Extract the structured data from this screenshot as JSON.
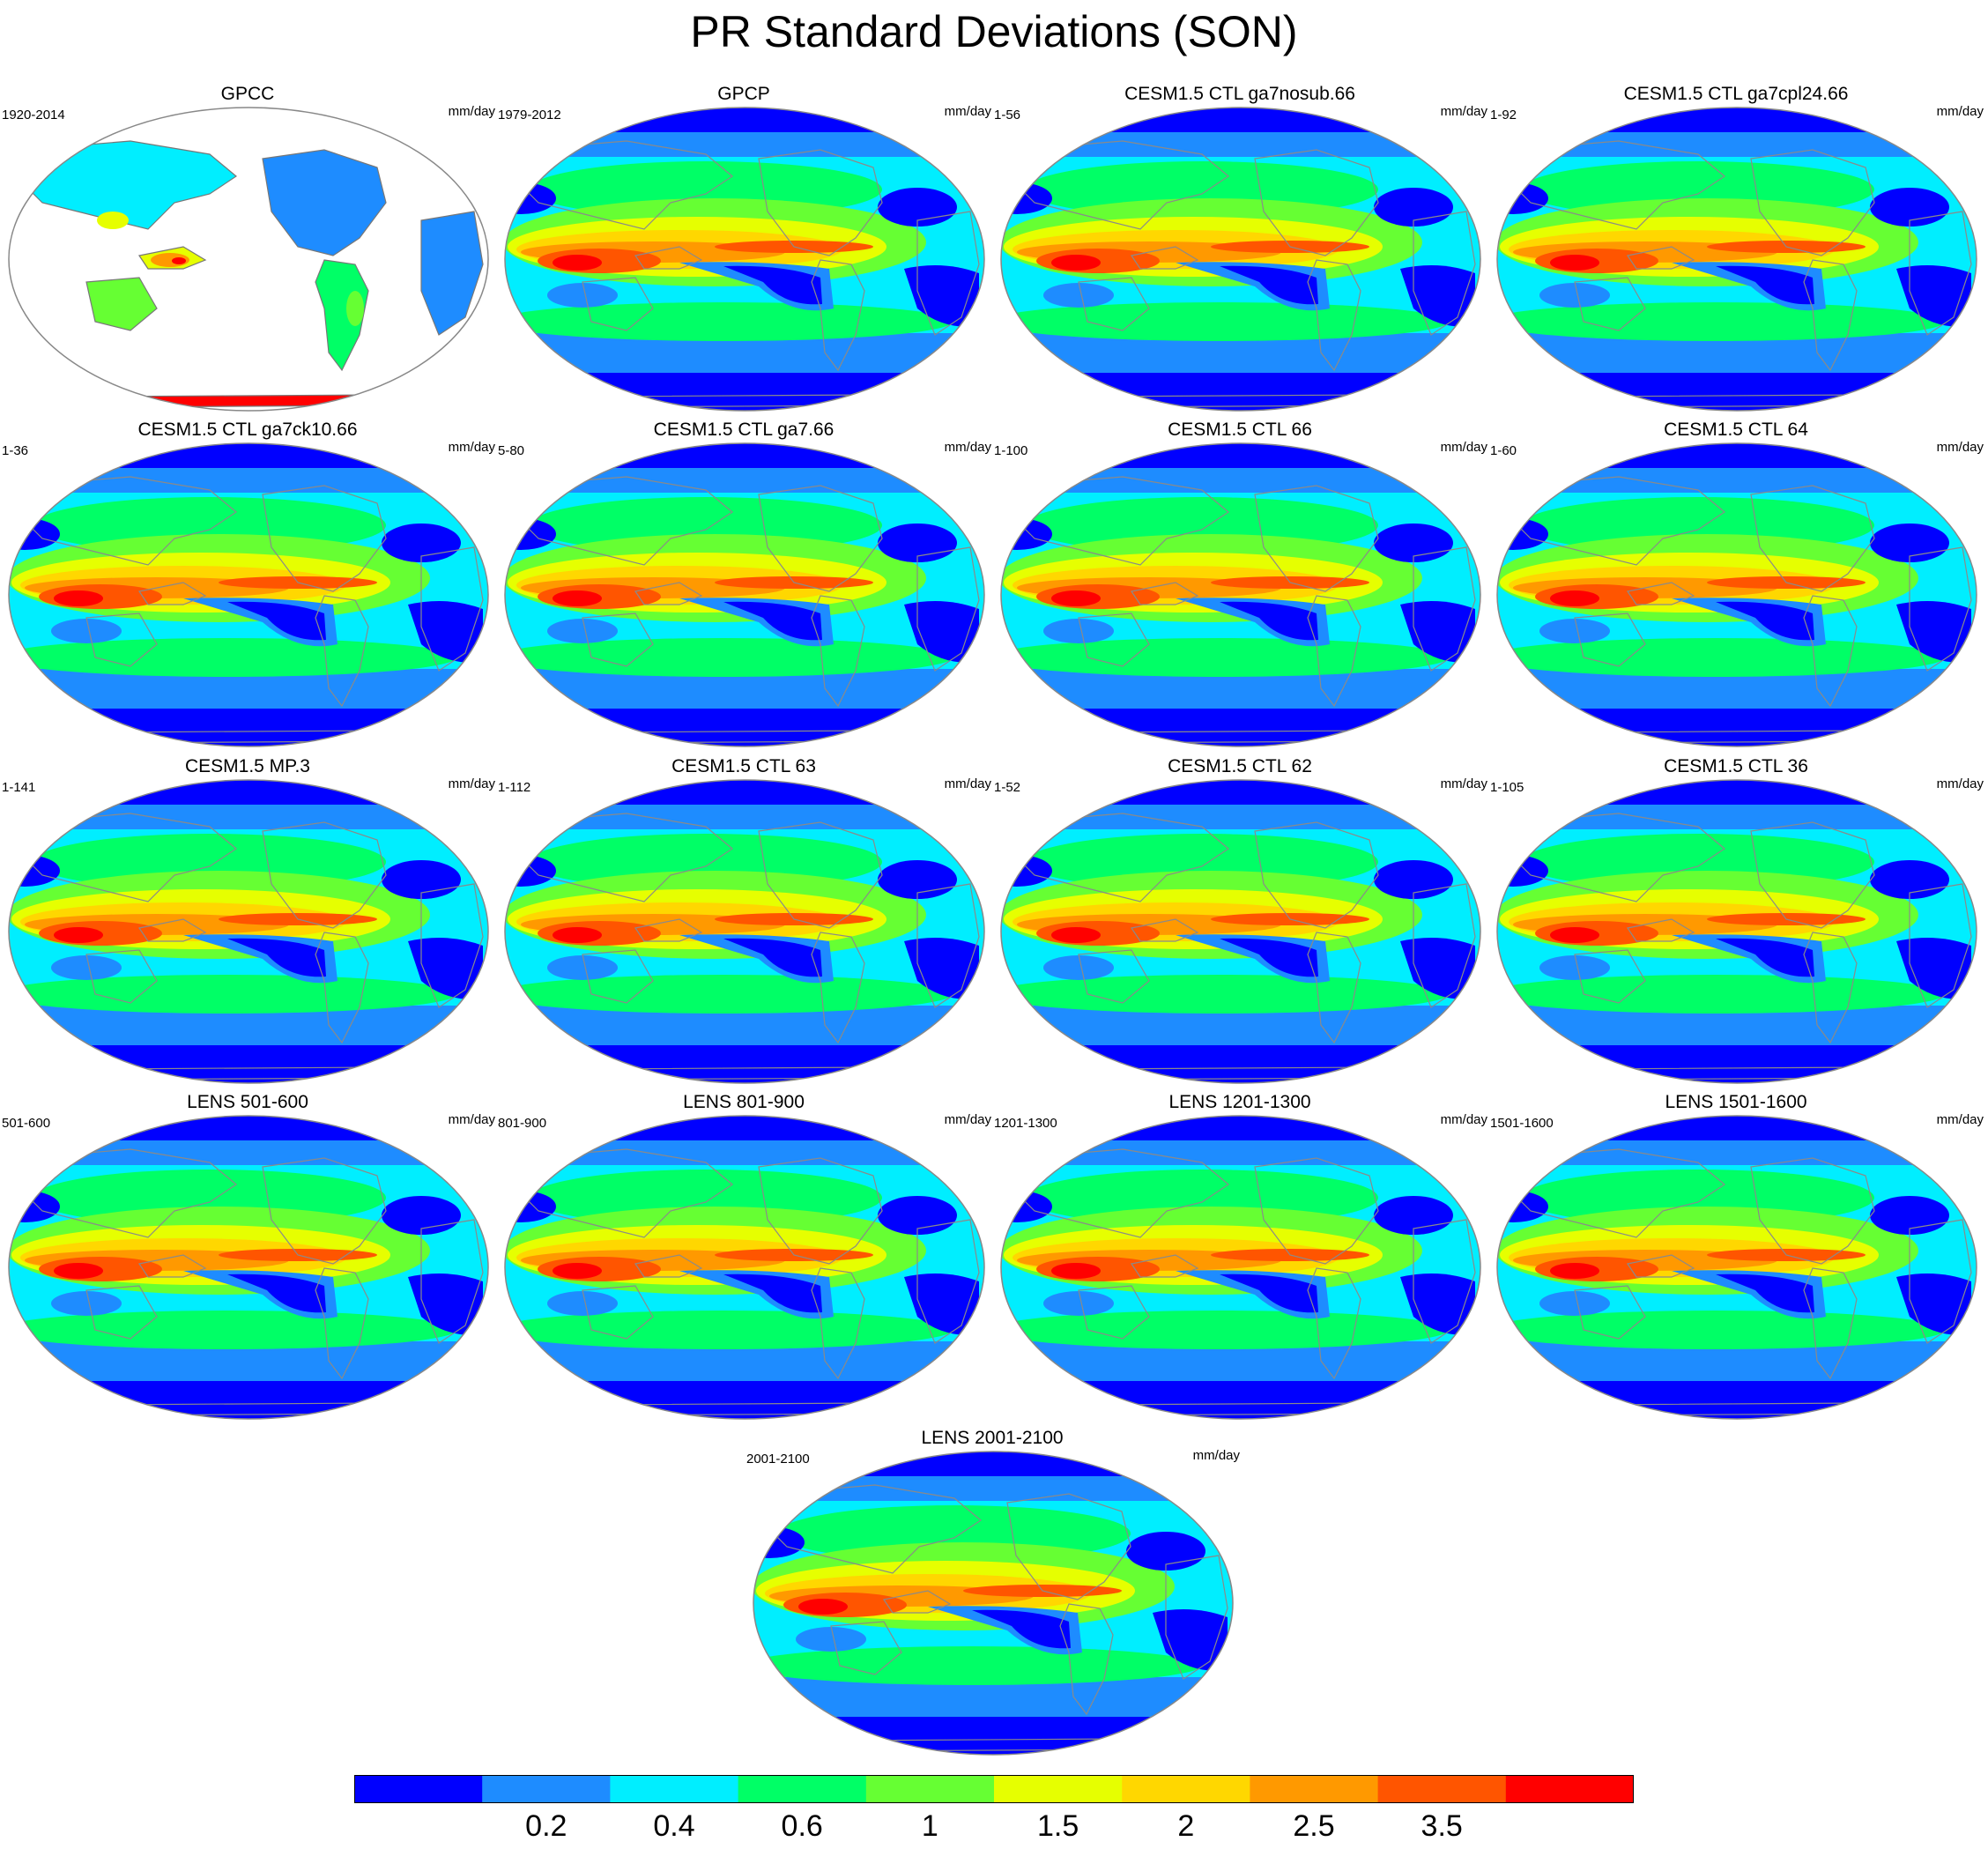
{
  "title": "PR Standard Deviations (SON)",
  "units": "mm/day",
  "colorbar": {
    "colors": [
      "#0000ff",
      "#1e8cff",
      "#00eeff",
      "#00ff66",
      "#66ff33",
      "#e6ff00",
      "#ffd700",
      "#ff9900",
      "#ff5500",
      "#ff0000"
    ],
    "labels": [
      "0.2",
      "0.4",
      "0.6",
      "1",
      "1.5",
      "2",
      "2.5",
      "3.5"
    ]
  },
  "panels": [
    {
      "title": "GPCC",
      "period": "1920-2014",
      "units": "mm/day",
      "land_only": true
    },
    {
      "title": "GPCP",
      "period": "1979-2012",
      "units": "mm/day"
    },
    {
      "title": "CESM1.5 CTL ga7nosub.66",
      "period": "1-56",
      "units": "mm/day"
    },
    {
      "title": "CESM1.5 CTL ga7cpl24.66",
      "period": "1-92",
      "units": "mm/day"
    },
    {
      "title": "CESM1.5 CTL ga7ck10.66",
      "period": "1-36",
      "units": "mm/day"
    },
    {
      "title": "CESM1.5 CTL ga7.66",
      "period": "5-80",
      "units": "mm/day"
    },
    {
      "title": "CESM1.5 CTL 66",
      "period": "1-100",
      "units": "mm/day"
    },
    {
      "title": "CESM1.5 CTL 64",
      "period": "1-60",
      "units": "mm/day"
    },
    {
      "title": "CESM1.5 MP.3",
      "period": "1-141",
      "units": "mm/day"
    },
    {
      "title": "CESM1.5 CTL 63",
      "period": "1-112",
      "units": "mm/day"
    },
    {
      "title": "CESM1.5 CTL 62",
      "period": "1-52",
      "units": "mm/day"
    },
    {
      "title": "CESM1.5 CTL 36",
      "period": "1-105",
      "units": "mm/day"
    },
    {
      "title": "LENS 501-600",
      "period": "501-600",
      "units": "mm/day"
    },
    {
      "title": "LENS 801-900",
      "period": "801-900",
      "units": "mm/day"
    },
    {
      "title": "LENS 1201-1300",
      "period": "1201-1300",
      "units": "mm/day"
    },
    {
      "title": "LENS 1501-1600",
      "period": "1501-1600",
      "units": "mm/day"
    },
    {
      "title": "LENS 2001-2100",
      "period": "2001-2100",
      "units": "mm/day"
    }
  ]
}
